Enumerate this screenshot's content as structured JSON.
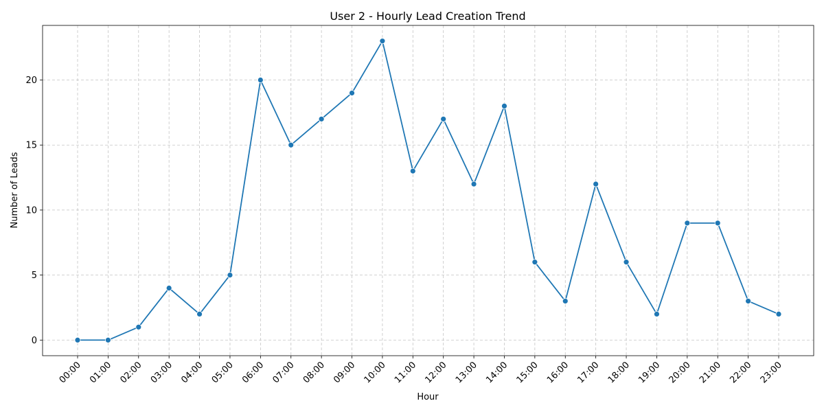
{
  "chart_data": {
    "type": "line",
    "title": "User 2 - Hourly Lead Creation Trend",
    "xlabel": "Hour",
    "ylabel": "Number of Leads",
    "categories": [
      "00:00",
      "01:00",
      "02:00",
      "03:00",
      "04:00",
      "05:00",
      "06:00",
      "07:00",
      "08:00",
      "09:00",
      "10:00",
      "11:00",
      "12:00",
      "13:00",
      "14:00",
      "15:00",
      "16:00",
      "17:00",
      "18:00",
      "19:00",
      "20:00",
      "21:00",
      "22:00",
      "23:00"
    ],
    "series": [
      {
        "values": [
          0,
          0,
          1,
          4,
          2,
          5,
          20,
          15,
          17,
          19,
          23,
          13,
          17,
          12,
          18,
          6,
          3,
          12,
          6,
          2,
          9,
          9,
          3,
          2
        ],
        "color": "#1f77b4",
        "marker": "circle"
      }
    ],
    "ylim": [
      -1.2,
      24.2
    ],
    "yticks": [
      0,
      5,
      10,
      15,
      20
    ],
    "grid": true,
    "xtick_rotation": 45
  }
}
